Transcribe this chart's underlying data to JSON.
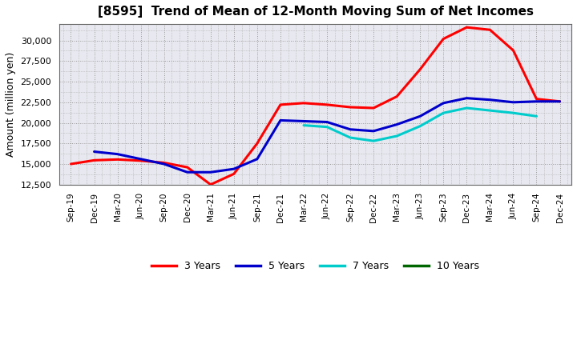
{
  "title": "[8595]  Trend of Mean of 12-Month Moving Sum of Net Incomes",
  "ylabel": "Amount (million yen)",
  "ylim": [
    12500,
    32000
  ],
  "yticks": [
    12500,
    15000,
    17500,
    20000,
    22500,
    25000,
    27500,
    30000
  ],
  "x_labels": [
    "Sep-19",
    "Dec-19",
    "Mar-20",
    "Jun-20",
    "Sep-20",
    "Dec-20",
    "Mar-21",
    "Jun-21",
    "Sep-21",
    "Dec-21",
    "Mar-22",
    "Jun-22",
    "Sep-22",
    "Dec-22",
    "Mar-23",
    "Jun-23",
    "Sep-23",
    "Dec-23",
    "Mar-24",
    "Jun-24",
    "Sep-24",
    "Dec-24"
  ],
  "series": {
    "3 Years": {
      "color": "#ff0000",
      "values": [
        15000,
        15450,
        15550,
        15400,
        15150,
        14600,
        12500,
        13800,
        17500,
        22200,
        22400,
        22200,
        21900,
        21800,
        23200,
        26500,
        30200,
        31600,
        31300,
        28800,
        22900,
        22600
      ]
    },
    "5 Years": {
      "color": "#0000cc",
      "values": [
        null,
        16500,
        16200,
        15600,
        15000,
        14000,
        14000,
        14400,
        15600,
        20300,
        20200,
        20100,
        19200,
        19000,
        19800,
        20800,
        22400,
        23000,
        22800,
        22500,
        22600,
        22600
      ]
    },
    "7 Years": {
      "color": "#00cccc",
      "values": [
        null,
        null,
        null,
        null,
        null,
        null,
        null,
        null,
        null,
        null,
        19700,
        19500,
        18200,
        17800,
        18400,
        19600,
        21200,
        21800,
        21500,
        21200,
        20800,
        null
      ]
    },
    "10 Years": {
      "color": "#006600",
      "values": [
        null,
        null,
        null,
        null,
        null,
        null,
        null,
        null,
        null,
        null,
        null,
        null,
        null,
        null,
        null,
        null,
        null,
        null,
        null,
        null,
        null,
        null
      ]
    }
  },
  "background_color": "#ffffff",
  "plot_bg_color": "#e8e8f0",
  "grid_color": "#999999",
  "title_fontsize": 11,
  "legend_labels": [
    "3 Years",
    "5 Years",
    "7 Years",
    "10 Years"
  ],
  "legend_colors": [
    "#ff0000",
    "#0000cc",
    "#00cccc",
    "#006600"
  ]
}
